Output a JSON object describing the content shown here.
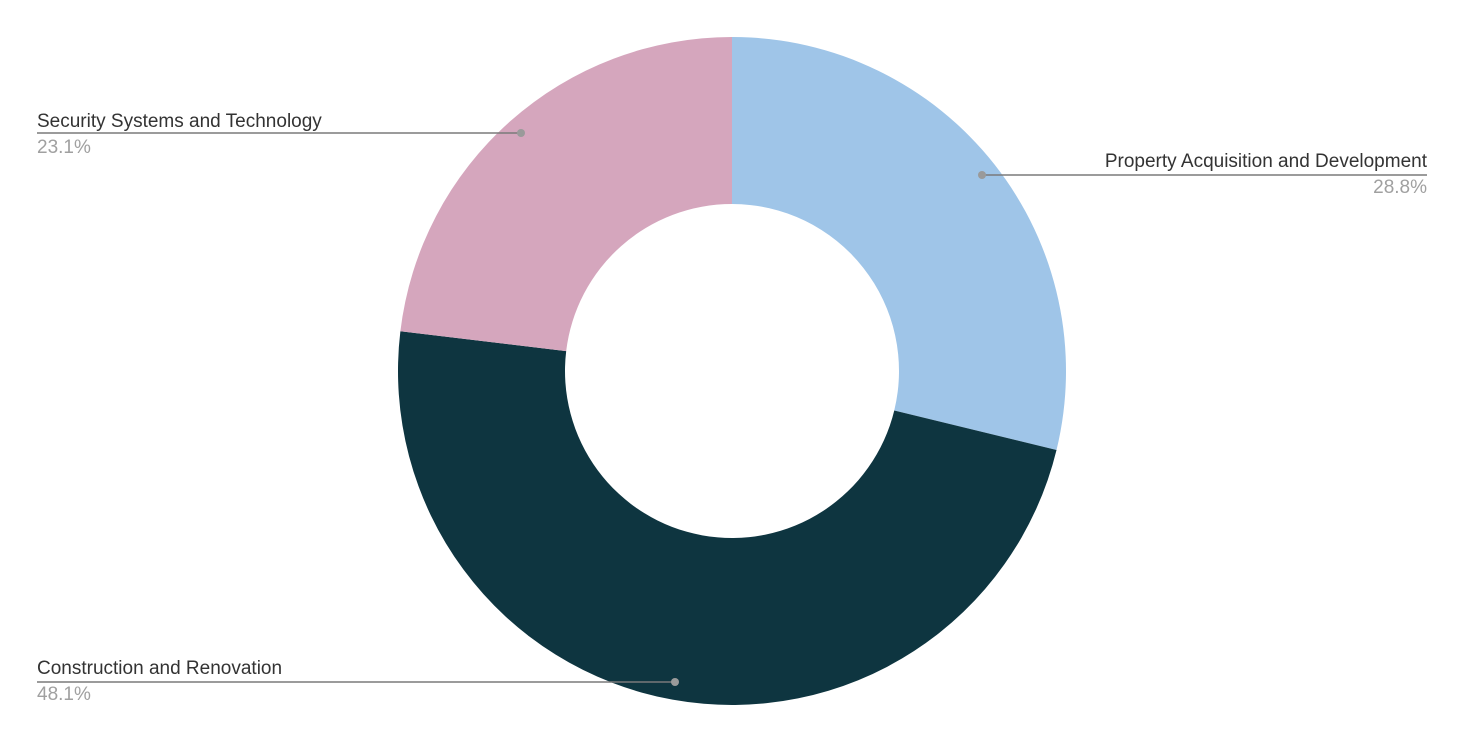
{
  "chart_data": {
    "type": "pie",
    "donut": true,
    "slices": [
      {
        "label": "Property Acquisition and Development",
        "value": 28.8,
        "value_label": "28.8%",
        "color": "#9fc5e8"
      },
      {
        "label": "Construction and Renovation",
        "value": 48.1,
        "value_label": "48.1%",
        "color": "#0e3540"
      },
      {
        "label": "Security Systems and Technology",
        "value": 23.1,
        "value_label": "23.1%",
        "color": "#d5a6bd"
      }
    ],
    "start_angle_deg": 0,
    "direction": "clockwise",
    "legend": "none",
    "labels": "outside-with-leader-lines"
  }
}
